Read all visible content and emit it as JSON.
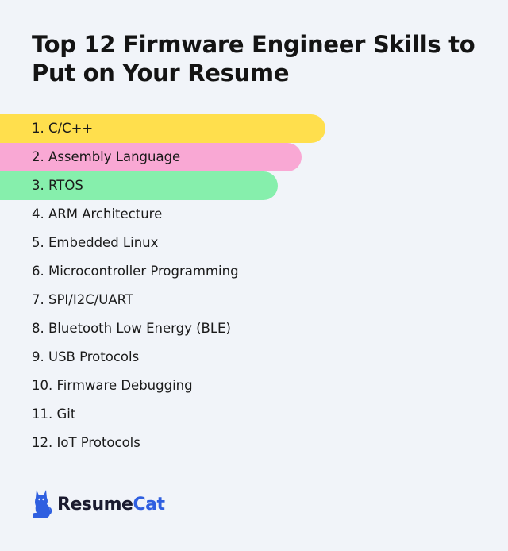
{
  "title": "Top 12 Firmware Engineer Skills to Put on Your Resume",
  "skills": [
    {
      "label": "1. C/C++",
      "highlight": "#ffdf4d"
    },
    {
      "label": "2. Assembly Language",
      "highlight": "#f9a8d4"
    },
    {
      "label": "3. RTOS",
      "highlight": "#86efac"
    },
    {
      "label": "4. ARM Architecture"
    },
    {
      "label": "5. Embedded Linux"
    },
    {
      "label": "6. Microcontroller Programming"
    },
    {
      "label": "7. SPI/I2C/UART"
    },
    {
      "label": "8. Bluetooth Low Energy (BLE)"
    },
    {
      "label": "9. USB Protocols"
    },
    {
      "label": "10. Firmware Debugging"
    },
    {
      "label": "11. Git"
    },
    {
      "label": "12. IoT Protocols"
    }
  ],
  "brand": {
    "name_part1": "Resume",
    "name_part2": "Cat",
    "icon": "cat-icon",
    "accent_color": "#2f5fe0"
  }
}
